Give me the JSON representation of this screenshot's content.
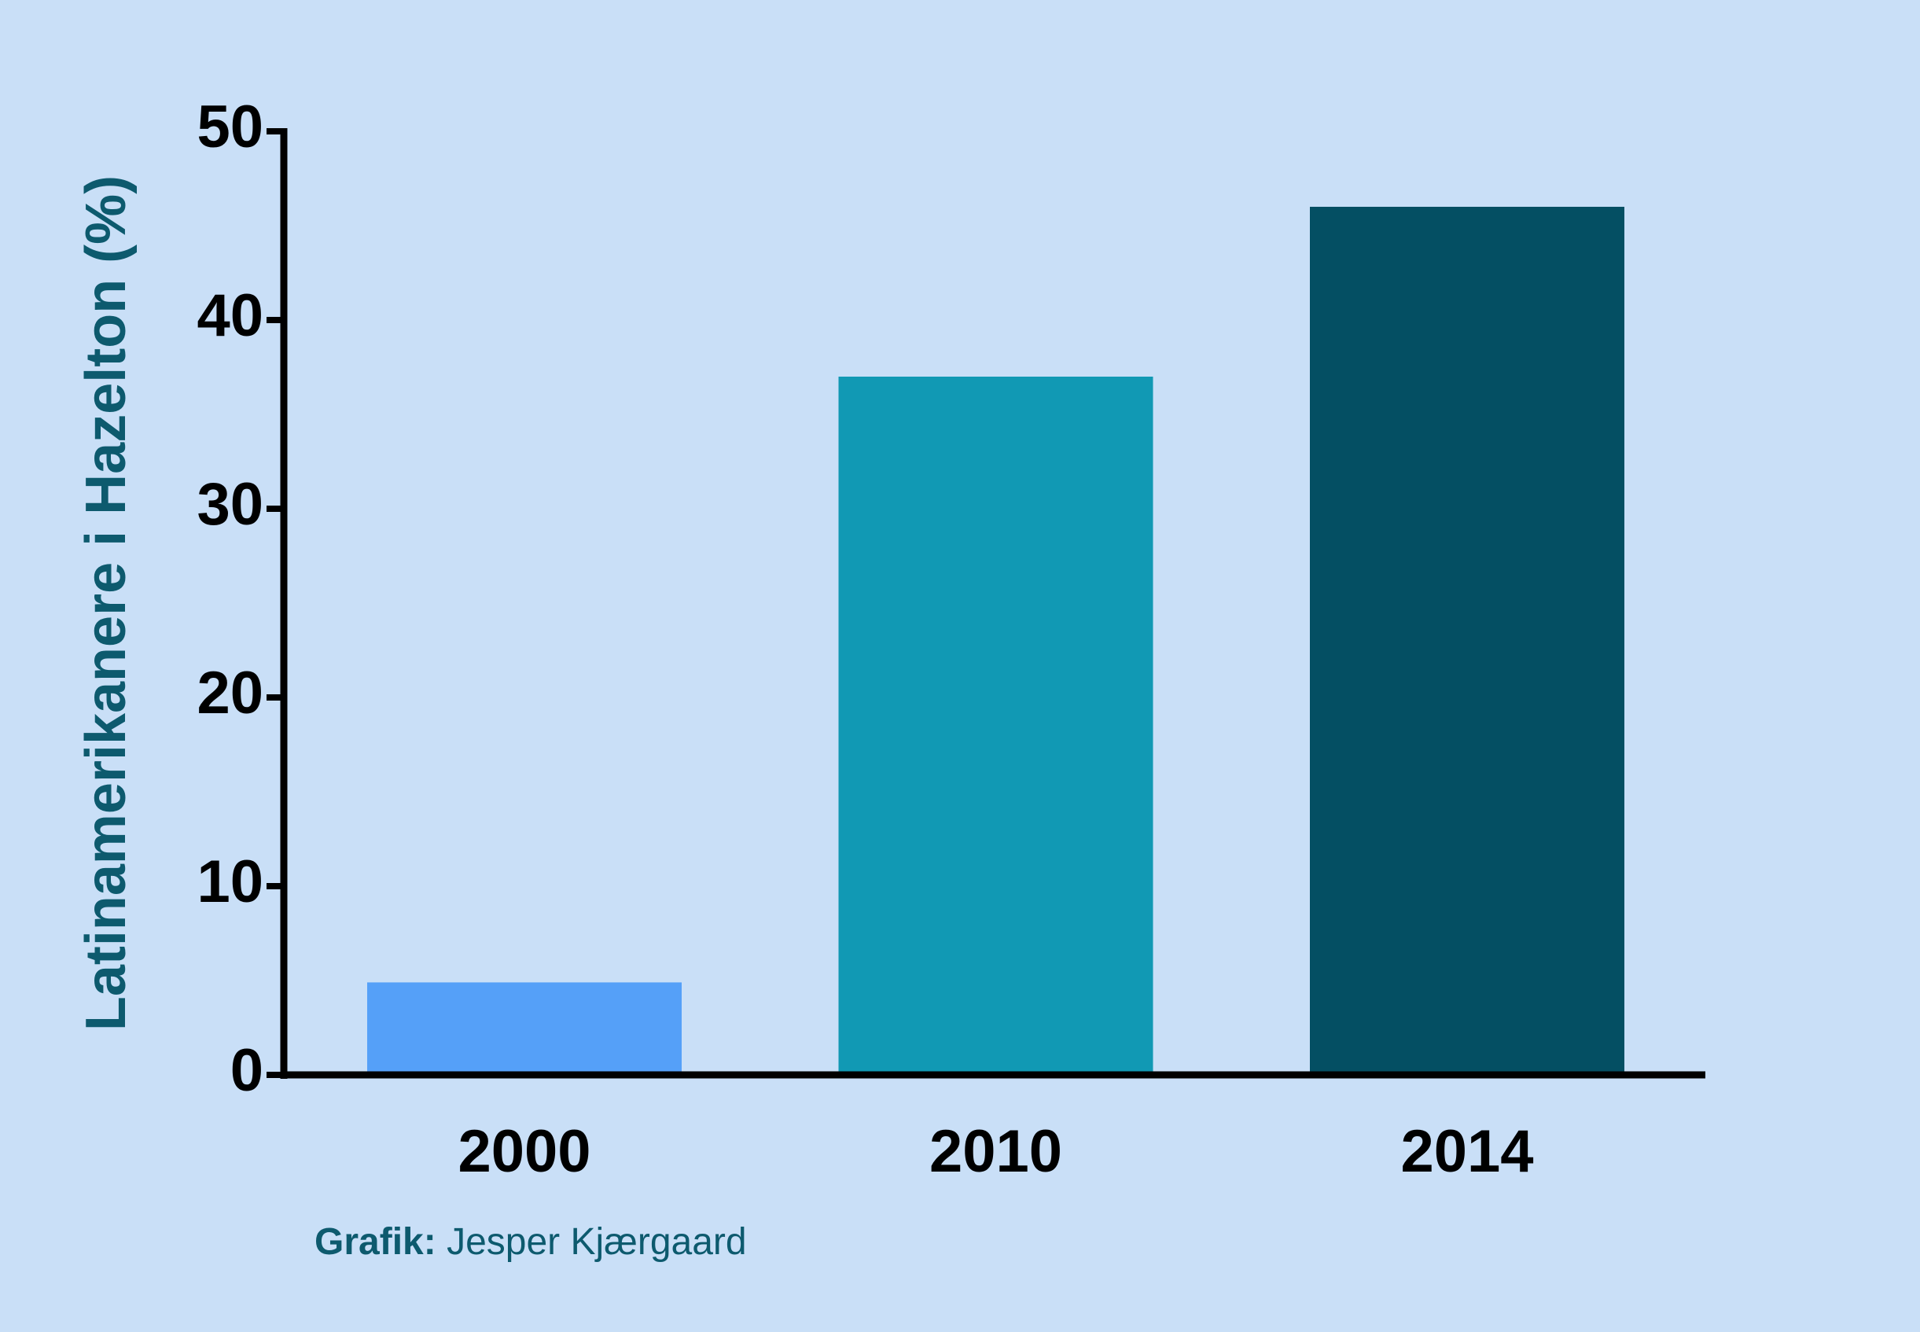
{
  "chart_data": {
    "type": "bar",
    "y_label": "Latinamerikanere i Hazelton (%)",
    "categories": [
      "2000",
      "2010",
      "2014"
    ],
    "values": [
      4.9,
      37,
      46
    ],
    "colors": [
      "#55a0f8",
      "#1199b4",
      "#044f63"
    ],
    "ylim": [
      0,
      50
    ],
    "yticks": [
      0,
      10,
      20,
      30,
      40,
      50
    ],
    "grid": false
  },
  "credit": {
    "label": "Grafik:",
    "name": "Jesper Kjærgaard"
  }
}
